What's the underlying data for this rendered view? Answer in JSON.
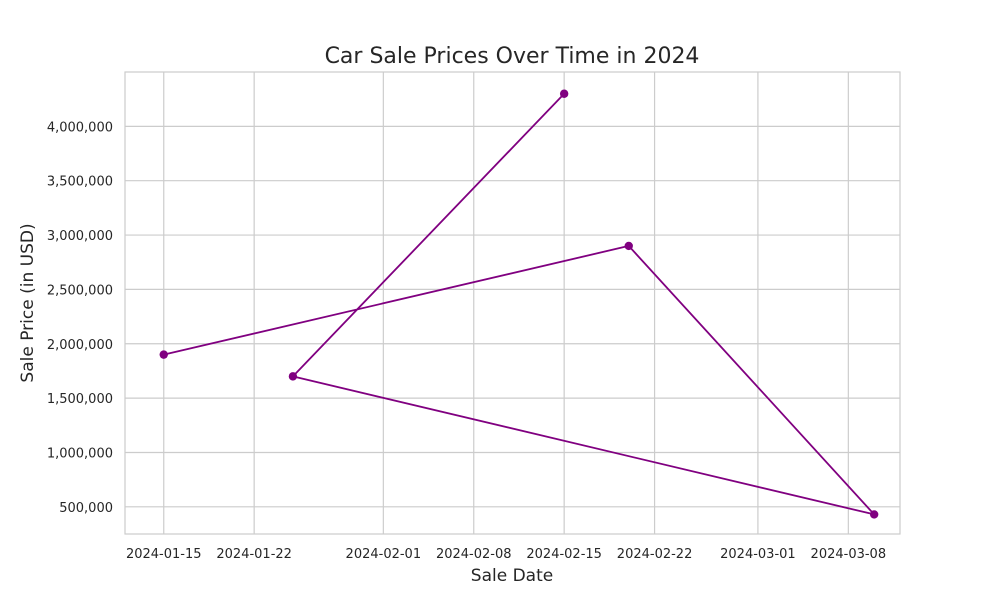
{
  "chart_data": {
    "type": "line",
    "title": "Car Sale Prices Over Time in 2024",
    "xlabel": "Sale Date",
    "ylabel": "Sale Price (in USD)",
    "x_type": "date",
    "xlim": [
      "2024-01-12",
      "2024-03-12"
    ],
    "ylim": [
      250000,
      4500000
    ],
    "x_ticks": [
      "2024-01-15",
      "2024-01-22",
      "2024-02-01",
      "2024-02-08",
      "2024-02-15",
      "2024-02-22",
      "2024-03-01",
      "2024-03-08"
    ],
    "y_ticks": [
      500000,
      1000000,
      1500000,
      2000000,
      2500000,
      3000000,
      3500000,
      4000000
    ],
    "y_tick_labels": [
      "500,000",
      "1,000,000",
      "1,500,000",
      "2,000,000",
      "2,500,000",
      "3,000,000",
      "3,500,000",
      "4,000,000"
    ],
    "grid": true,
    "series": [
      {
        "color": "#800080",
        "marker": "circle",
        "points": [
          {
            "x": "2024-01-15",
            "y": 1900000
          },
          {
            "x": "2024-02-20",
            "y": 2900000
          },
          {
            "x": "2024-03-10",
            "y": 430000
          },
          {
            "x": "2024-01-25",
            "y": 1700000
          },
          {
            "x": "2024-02-15",
            "y": 4300000
          }
        ]
      }
    ]
  }
}
